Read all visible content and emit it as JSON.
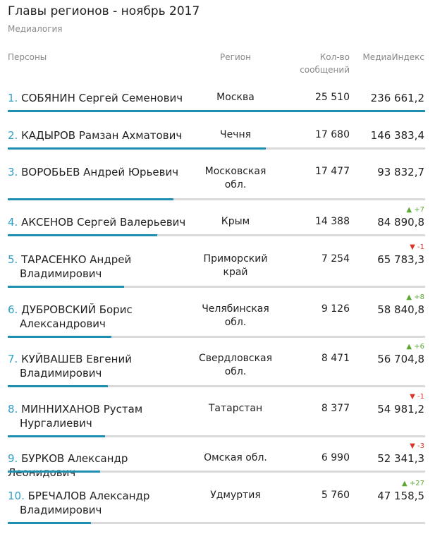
{
  "header": {
    "title": "Главы регионов - ноябрь 2017",
    "subtitle": "Медиалогия"
  },
  "columns": {
    "person": "Персоны",
    "region": "Регион",
    "count_line1": "Кол-во",
    "count_line2": "сообщений",
    "index": "МедиаИндекс"
  },
  "rows": [
    {
      "rank": "1.",
      "name_line1": "СОБЯНИН Сергей Семенович",
      "name_line2": "",
      "region_line1": "Москва",
      "region_line2": "",
      "count": "25 510",
      "index": "236 661,2",
      "change": "",
      "index_value": 236661.2
    },
    {
      "rank": "2.",
      "name_line1": "КАДЫРОВ Рамзан Ахматович",
      "name_line2": "",
      "region_line1": "Чечня",
      "region_line2": "",
      "count": "17 680",
      "index": "146 383,4",
      "change": "",
      "index_value": 146383.4
    },
    {
      "rank": "3.",
      "name_line1": "ВОРОБЬЕВ Андрей Юрьевич",
      "name_line2": "",
      "region_line1": "Московская",
      "region_line2": "обл.",
      "count": "17 477",
      "index": "93 832,7",
      "change": "",
      "index_value": 93832.7
    },
    {
      "rank": "4.",
      "name_line1": "АКСЕНОВ Сергей Валерьевич",
      "name_line2": "",
      "region_line1": "Крым",
      "region_line2": "",
      "count": "14 388",
      "index": "84 890,8",
      "change": "▲ +7",
      "change_dir": "up",
      "index_value": 84890.8
    },
    {
      "rank": "5.",
      "name_line1": "ТАРАСЕНКО Андрей",
      "name_line2": "Владимирович",
      "region_line1": "Приморский",
      "region_line2": "край",
      "count": "7 254",
      "index": "65 783,3",
      "change": "▼ -1",
      "change_dir": "down",
      "index_value": 65783.3
    },
    {
      "rank": "6.",
      "name_line1": "ДУБРОВСКИЙ Борис",
      "name_line2": "Александрович",
      "region_line1": "Челябинская",
      "region_line2": "обл.",
      "count": "9 126",
      "index": "58 840,8",
      "change": "▲ +8",
      "change_dir": "up",
      "index_value": 58840.8
    },
    {
      "rank": "7.",
      "name_line1": "КУЙВАШЕВ Евгений",
      "name_line2": "Владимирович",
      "region_line1": "Свердловская",
      "region_line2": "обл.",
      "count": "8 471",
      "index": "56 704,8",
      "change": "▲ +6",
      "change_dir": "up",
      "index_value": 56704.8
    },
    {
      "rank": "8.",
      "name_line1": "МИННИХАНОВ Рустам",
      "name_line2": "Нургалиевич",
      "region_line1": "Татарстан",
      "region_line2": "",
      "count": "8 377",
      "index": "54 981,2",
      "change": "▼ -1",
      "change_dir": "down",
      "index_value": 54981.2
    },
    {
      "rank": "9.",
      "name_line1": "БУРКОВ Александр Леонидович",
      "name_line2": "",
      "region_line1": "Омская обл.",
      "region_line2": "",
      "count": "6 990",
      "index": "52 341,3",
      "change": "▼ -3",
      "change_dir": "down",
      "index_value": 52341.3
    },
    {
      "rank": "10.",
      "name_line1": "БРЕЧАЛОВ Александр",
      "name_line2": "Владимирович",
      "region_line1": "Удмуртия",
      "region_line2": "",
      "count": "5 760",
      "index": "47 158,5",
      "change": "▲ +27",
      "change_dir": "up",
      "index_value": 47158.5
    }
  ],
  "colors": {
    "accent": "#1e8fb1",
    "rank": "#2f9fc4",
    "up": "#5aa832",
    "down": "#d9362b",
    "track": "#d9d9d9"
  }
}
